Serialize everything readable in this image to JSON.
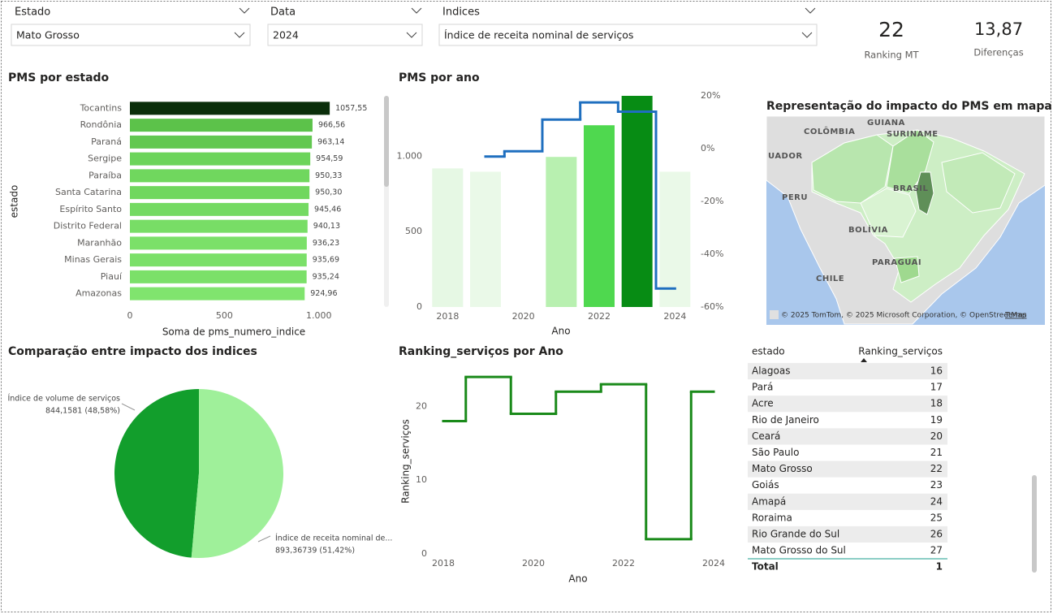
{
  "filters": [
    {
      "label": "Estado",
      "value": "Mato Grosso"
    },
    {
      "label": "Data",
      "value": "2024"
    },
    {
      "label": "Indices",
      "value": "Índice de receita nominal de serviços"
    }
  ],
  "cards": [
    {
      "value": "22",
      "label": "Ranking MT"
    },
    {
      "value": "13,87",
      "label": "Diferenças"
    }
  ],
  "chart_data": [
    {
      "type": "hbar",
      "title": "PMS por estado",
      "x_label": "Soma de pms_numero_indice",
      "y_label": "estado",
      "categories": [
        "Tocantins",
        "Rondônia",
        "Paraná",
        "Sergipe",
        "Paraíba",
        "Santa Catarina",
        "Espírito Santo",
        "Distrito Federal",
        "Maranhão",
        "Minas Gerais",
        "Piauí",
        "Amazonas"
      ],
      "values": [
        1057.55,
        966.56,
        963.14,
        954.59,
        950.33,
        950.3,
        945.46,
        940.13,
        936.23,
        935.69,
        935.24,
        924.96
      ],
      "value_labels": [
        "1057,55",
        "966,56",
        "963,14",
        "954,59",
        "950,33",
        "950,30",
        "945,46",
        "940,13",
        "936,23",
        "935,69",
        "935,24",
        "924,96"
      ],
      "colors": [
        "#0a2e0a",
        "#5cc24a",
        "#62c850",
        "#6cd45a",
        "#70d75e",
        "#70d75e",
        "#74da62",
        "#78dd66",
        "#7be069",
        "#7be069",
        "#7be069",
        "#80e46e"
      ],
      "xlim": [
        0,
        1100
      ],
      "xticks": [
        0,
        500,
        {
          "value": 1000,
          "label": "1.000"
        }
      ]
    },
    {
      "type": "combo",
      "title": "PMS por ano",
      "x_label": "Ano",
      "x": [
        2018,
        2019,
        2020,
        2021,
        2022,
        2023,
        2024
      ],
      "xlim": [
        2017.5,
        2024.4
      ],
      "xticks": [
        2018,
        2020,
        2022,
        2024
      ],
      "ylim": [
        0,
        1400
      ],
      "yticks": [
        0,
        500,
        {
          "value": 1000,
          "label": "1.000"
        }
      ],
      "y2lim": [
        -60,
        20
      ],
      "y2ticks": [
        {
          "value": 20,
          "label": "20%"
        },
        {
          "value": 0,
          "label": "0%"
        },
        {
          "value": -20,
          "label": "-20%"
        },
        {
          "value": -40,
          "label": "-40%"
        },
        {
          "value": -60,
          "label": "-60%"
        }
      ],
      "series": [
        {
          "type": "bar",
          "values": [
            919,
            897,
            null,
            995,
            1205,
            1400,
            897
          ],
          "colors": [
            "#e6f8e4",
            "#eaf9e8",
            "#eaf9e8",
            "#b8f0b0",
            "#4fd84f",
            "#078c14",
            "#eaf9e8"
          ]
        },
        {
          "type": "step",
          "axis": "y2",
          "color": "#1f6fbf",
          "values": [
            null,
            -3,
            -1,
            11,
            17.5,
            14,
            -53
          ]
        }
      ]
    },
    {
      "type": "pie",
      "title": "Comparação entre impacto dos indices",
      "categories": [
        "Índice de volume de serviços",
        "Índice de receita nominal de..."
      ],
      "values": [
        844.1581,
        893.36739
      ],
      "value_labels": [
        "844,1581 (48,58%)",
        "893,36739 (51,42%)"
      ],
      "colors": [
        "#129e2c",
        "#9ff09a"
      ]
    },
    {
      "type": "step",
      "title": "Ranking_serviços por Ano",
      "x_label": "Ano",
      "y_label": "Ranking_serviços",
      "x": [
        2018,
        2019,
        2020,
        2021,
        2022,
        2023,
        2024
      ],
      "values": [
        18,
        24,
        19,
        22,
        23,
        2,
        22
      ],
      "color": "#1a8a1a",
      "xlim": [
        2018,
        2024
      ],
      "xticks": [
        2018,
        2020,
        2022,
        2024
      ],
      "ylim": [
        0,
        25
      ],
      "yticks": [
        0,
        10,
        20
      ]
    }
  ],
  "map": {
    "title": "Representação do impacto do PMS em mapa",
    "labels": [
      "COLÔMBIA",
      "GUIANA",
      "SURINAME",
      "UADOR",
      "BRASIL",
      "PERU",
      "BOLÍVIA",
      "PARAGUAI",
      "CHILE"
    ],
    "attribution": "© 2025 TomTom, © 2025 Microsoft Corporation, © OpenStreetMap",
    "terms": "Terms"
  },
  "table": {
    "columns": [
      "estado",
      "Ranking_serviços"
    ],
    "rows": [
      [
        "Alagoas",
        "16"
      ],
      [
        "Pará",
        "17"
      ],
      [
        "Acre",
        "18"
      ],
      [
        "Rio de Janeiro",
        "19"
      ],
      [
        "Ceará",
        "20"
      ],
      [
        "São Paulo",
        "21"
      ],
      [
        "Mato Grosso",
        "22"
      ],
      [
        "Goiás",
        "23"
      ],
      [
        "Amapá",
        "24"
      ],
      [
        "Roraima",
        "25"
      ],
      [
        "Rio Grande do Sul",
        "26"
      ],
      [
        "Mato Grosso do Sul",
        "27"
      ]
    ],
    "total": [
      "Total",
      "1"
    ]
  }
}
